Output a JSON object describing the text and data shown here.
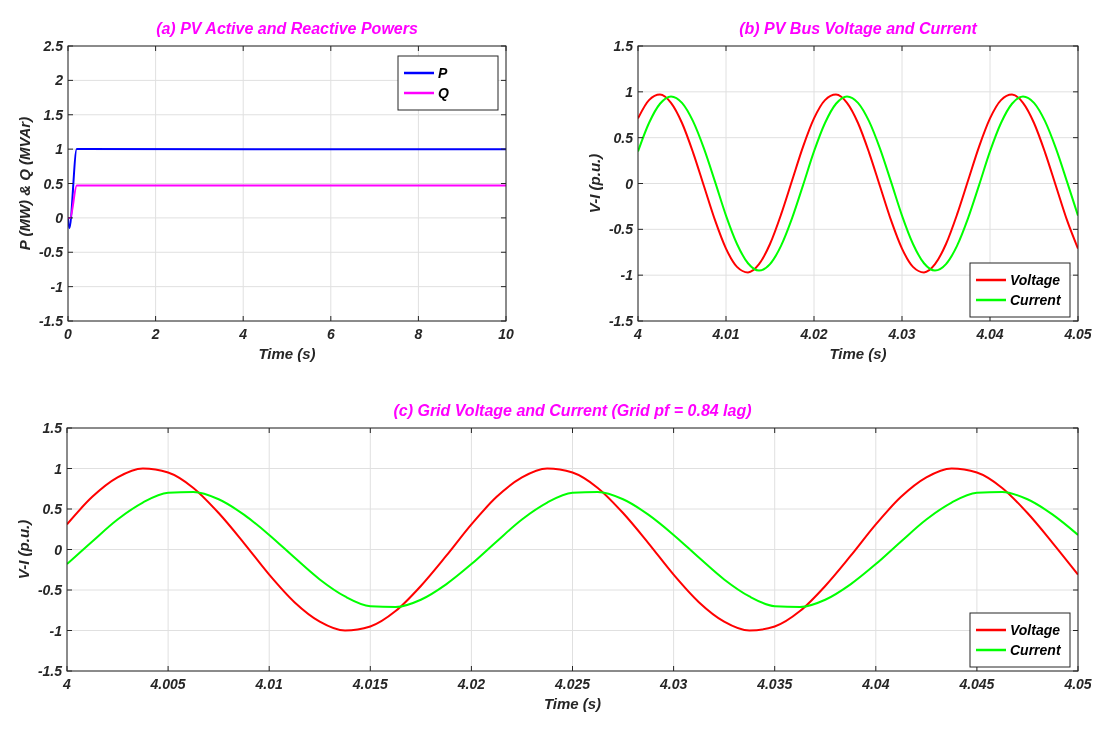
{
  "chart_data": [
    {
      "type": "line",
      "title": "(a) PV Active and Reactive Powers",
      "xlabel": "Time (s)",
      "ylabel": "P (MW) & Q (MVAr)",
      "xlim": [
        0,
        10
      ],
      "xticks": [
        0,
        2,
        4,
        6,
        8,
        10
      ],
      "ylim": [
        -1.5,
        2.5
      ],
      "yticks": [
        -1.5,
        -1,
        -0.5,
        0,
        0.5,
        1,
        1.5,
        2,
        2.5
      ],
      "grid": true,
      "legend": "top right",
      "series": [
        {
          "name": "P",
          "color": "#0000ff",
          "x": [
            0,
            0.03,
            0.2,
            10
          ],
          "values": [
            0,
            -0.15,
            1,
            1
          ]
        },
        {
          "name": "Q",
          "color": "#ff00ff",
          "x": [
            0,
            0.05,
            0.2,
            10
          ],
          "values": [
            0,
            0,
            0.47,
            0.47
          ]
        }
      ]
    },
    {
      "type": "line",
      "title": "(b) PV Bus Voltage and Current",
      "xlabel": "Time (s)",
      "ylabel": "V-I (p.u.)",
      "xlim": [
        4,
        4.05
      ],
      "xticks": [
        4,
        4.01,
        4.02,
        4.03,
        4.04,
        4.05
      ],
      "ylim": [
        -1.5,
        1.5
      ],
      "yticks": [
        -1.5,
        -1,
        -0.5,
        0,
        0.5,
        1,
        1.5
      ],
      "grid": true,
      "legend": "bottom right",
      "x": [
        4,
        4.00125,
        4.0025,
        4.00375,
        4.005,
        4.00625,
        4.0075,
        4.00875,
        4.01,
        4.01125,
        4.0125,
        4.01375,
        4.015,
        4.01625,
        4.0175,
        4.01875,
        4.02,
        4.02125,
        4.0225,
        4.02375,
        4.025,
        4.02625,
        4.0275,
        4.02875,
        4.03,
        4.03125,
        4.0325,
        4.03375,
        4.035,
        4.03625,
        4.0375,
        4.03875,
        4.04,
        4.04125,
        4.0425,
        4.04375,
        4.045,
        4.04625,
        4.0475,
        4.04875,
        4.05
      ],
      "series": [
        {
          "name": "Voltage",
          "color": "#ff0000",
          "values": [
            0.71,
            0.91,
            0.97,
            0.88,
            0.66,
            0.34,
            -0.03,
            -0.4,
            -0.71,
            -0.91,
            -0.97,
            -0.88,
            -0.66,
            -0.34,
            0.03,
            0.4,
            0.71,
            0.91,
            0.97,
            0.88,
            0.66,
            0.34,
            -0.03,
            -0.4,
            -0.71,
            -0.91,
            -0.97,
            -0.88,
            -0.66,
            -0.34,
            0.03,
            0.4,
            0.71,
            0.91,
            0.97,
            0.88,
            0.66,
            0.34,
            -0.03,
            -0.4,
            -0.71
          ]
        },
        {
          "name": "Current",
          "color": "#00ff00",
          "values": [
            0.35,
            0.66,
            0.87,
            0.95,
            0.88,
            0.68,
            0.38,
            0.02,
            -0.35,
            -0.66,
            -0.87,
            -0.95,
            -0.88,
            -0.68,
            -0.38,
            -0.02,
            0.35,
            0.66,
            0.87,
            0.95,
            0.88,
            0.68,
            0.38,
            0.02,
            -0.35,
            -0.66,
            -0.87,
            -0.95,
            -0.88,
            -0.68,
            -0.38,
            -0.02,
            0.35,
            0.66,
            0.87,
            0.95,
            0.88,
            0.68,
            0.38,
            0.02,
            -0.35
          ]
        }
      ]
    },
    {
      "type": "line",
      "title": "(c) Grid Voltage and Current (Grid pf = 0.84 lag)",
      "xlabel": "Time (s)",
      "ylabel": "V-I (p.u.)",
      "xlim": [
        4,
        4.05
      ],
      "xticks": [
        4,
        4.005,
        4.01,
        4.015,
        4.02,
        4.025,
        4.03,
        4.035,
        4.04,
        4.045,
        4.05
      ],
      "ylim": [
        -1.5,
        1.5
      ],
      "yticks": [
        -1.5,
        -1,
        -0.5,
        0,
        0.5,
        1,
        1.5
      ],
      "grid": true,
      "legend": "bottom right",
      "x": [
        4,
        4.00125,
        4.0025,
        4.00375,
        4.005,
        4.00625,
        4.0075,
        4.00875,
        4.01,
        4.01125,
        4.0125,
        4.01375,
        4.015,
        4.01625,
        4.0175,
        4.01875,
        4.02,
        4.02125,
        4.0225,
        4.02375,
        4.025,
        4.02625,
        4.0275,
        4.02875,
        4.03,
        4.03125,
        4.0325,
        4.03375,
        4.035,
        4.03625,
        4.0375,
        4.03875,
        4.04,
        4.04125,
        4.0425,
        4.04375,
        4.045,
        4.04625,
        4.0475,
        4.04875,
        4.05
      ],
      "series": [
        {
          "name": "Voltage",
          "color": "#ff0000",
          "values": [
            0.31,
            0.65,
            0.89,
            1.0,
            0.95,
            0.76,
            0.45,
            0.08,
            -0.31,
            -0.65,
            -0.89,
            -1.0,
            -0.95,
            -0.76,
            -0.45,
            -0.08,
            0.31,
            0.65,
            0.89,
            1.0,
            0.95,
            0.76,
            0.45,
            0.08,
            -0.31,
            -0.65,
            -0.89,
            -1.0,
            -0.95,
            -0.76,
            -0.45,
            -0.08,
            0.31,
            0.65,
            0.89,
            1.0,
            0.95,
            0.76,
            0.45,
            0.08,
            -0.31
          ]
        },
        {
          "name": "Current",
          "color": "#00ff00",
          "values": [
            -0.18,
            0.1,
            0.37,
            0.58,
            0.7,
            0.71,
            0.62,
            0.43,
            0.18,
            -0.1,
            -0.37,
            -0.58,
            -0.7,
            -0.71,
            -0.62,
            -0.43,
            -0.18,
            0.1,
            0.37,
            0.58,
            0.7,
            0.71,
            0.62,
            0.43,
            0.18,
            -0.1,
            -0.37,
            -0.58,
            -0.7,
            -0.71,
            -0.62,
            -0.43,
            -0.18,
            0.1,
            0.37,
            0.58,
            0.7,
            0.71,
            0.62,
            0.43,
            0.18
          ]
        }
      ]
    }
  ]
}
